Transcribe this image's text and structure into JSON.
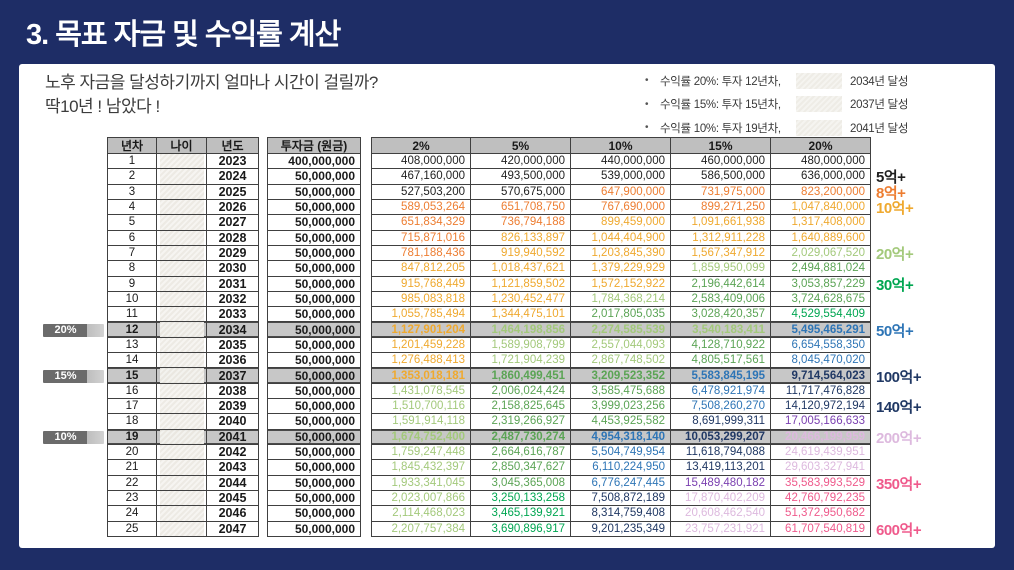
{
  "title": "3. 목표 자금 및 수익률 계산",
  "subtitle_line1": "노후 자금을 달성하기까지 얼마나 시간이 걸릴까?",
  "subtitle_line2": "딱10년 ! 남았다 !",
  "bullet_char": "•",
  "bullets": [
    {
      "prefix": "수익률 20%: 투자 12년차,",
      "suffix": "2034년 달성"
    },
    {
      "prefix": "수익률 15%: 투자 15년차,",
      "suffix": "2037년 달성"
    },
    {
      "prefix": "수익률 10%: 투자 19년차,",
      "suffix": "2041년 달성"
    }
  ],
  "palette": {
    "k": "#1F1F1F",
    "o": "#ED7D31",
    "g": "#EFA92F",
    "lg": "#A3C97B",
    "gr": "#5BA455",
    "em": "#00A651",
    "bl": "#2E75B6",
    "nv": "#203864",
    "pu": "#7A3FB0",
    "lv": "#DDB9DE",
    "pk": "#EF5A8C"
  },
  "table": {
    "headers": {
      "n": "년차",
      "age": "나이",
      "year": "년도",
      "principal": "투자금 (원금)",
      "rates": [
        "2%",
        "5%",
        "10%",
        "15%",
        "20%"
      ]
    },
    "rows": [
      {
        "n": "1",
        "year": "2023",
        "principal": "400,000,000",
        "v": [
          "408,000,000",
          "420,000,000",
          "440,000,000",
          "460,000,000",
          "480,000,000"
        ],
        "c": [
          "k",
          "k",
          "k",
          "k",
          "k"
        ]
      },
      {
        "n": "2",
        "year": "2024",
        "principal": "50,000,000",
        "v": [
          "467,160,000",
          "493,500,000",
          "539,000,000",
          "586,500,000",
          "636,000,000"
        ],
        "c": [
          "k",
          "k",
          "k",
          "k",
          "k"
        ],
        "label": "5억+",
        "lc": "k"
      },
      {
        "n": "3",
        "year": "2025",
        "principal": "50,000,000",
        "v": [
          "527,503,200",
          "570,675,000",
          "647,900,000",
          "731,975,000",
          "823,200,000"
        ],
        "c": [
          "k",
          "k",
          "o",
          "o",
          "o"
        ],
        "label": "8억+",
        "lc": "o"
      },
      {
        "n": "4",
        "year": "2026",
        "principal": "50,000,000",
        "v": [
          "589,053,264",
          "651,708,750",
          "767,690,000",
          "899,271,250",
          "1,047,840,000"
        ],
        "c": [
          "o",
          "o",
          "o",
          "o",
          "g"
        ],
        "label": "10억+",
        "lc": "g"
      },
      {
        "n": "5",
        "year": "2027",
        "principal": "50,000,000",
        "v": [
          "651,834,329",
          "736,794,188",
          "899,459,000",
          "1,091,661,938",
          "1,317,408,000"
        ],
        "c": [
          "o",
          "o",
          "g",
          "g",
          "g"
        ]
      },
      {
        "n": "6",
        "year": "2028",
        "principal": "50,000,000",
        "v": [
          "715,871,016",
          "826,133,897",
          "1,044,404,900",
          "1,312,911,228",
          "1,640,889,600"
        ],
        "c": [
          "o",
          "g",
          "g",
          "g",
          "g"
        ]
      },
      {
        "n": "7",
        "year": "2029",
        "principal": "50,000,000",
        "v": [
          "781,188,436",
          "919,940,592",
          "1,203,845,390",
          "1,567,347,912",
          "2,029,067,520"
        ],
        "c": [
          "o",
          "g",
          "g",
          "g",
          "lg"
        ],
        "label": "20억+",
        "lc": "lg"
      },
      {
        "n": "8",
        "year": "2030",
        "principal": "50,000,000",
        "v": [
          "847,812,205",
          "1,018,437,621",
          "1,379,229,929",
          "1,859,950,099",
          "2,494,881,024"
        ],
        "c": [
          "g",
          "g",
          "g",
          "lg",
          "gr"
        ]
      },
      {
        "n": "9",
        "year": "2031",
        "principal": "50,000,000",
        "v": [
          "915,768,449",
          "1,121,859,502",
          "1,572,152,922",
          "2,196,442,614",
          "3,053,857,229"
        ],
        "c": [
          "g",
          "g",
          "g",
          "gr",
          "gr"
        ],
        "label": "30억+",
        "lc": "em"
      },
      {
        "n": "10",
        "year": "2032",
        "principal": "50,000,000",
        "v": [
          "985,083,818",
          "1,230,452,477",
          "1,784,368,214",
          "2,583,409,006",
          "3,724,628,675"
        ],
        "c": [
          "g",
          "g",
          "lg",
          "gr",
          "gr"
        ]
      },
      {
        "n": "11",
        "year": "2033",
        "principal": "50,000,000",
        "v": [
          "1,055,785,494",
          "1,344,475,101",
          "2,017,805,035",
          "3,028,420,357",
          "4,529,554,409"
        ],
        "c": [
          "g",
          "g",
          "gr",
          "gr",
          "em"
        ]
      },
      {
        "n": "12",
        "year": "2034",
        "principal": "50,000,000",
        "v": [
          "1,127,901,204",
          "1,464,198,856",
          "2,274,585,539",
          "3,540,183,411",
          "5,495,465,291"
        ],
        "c": [
          "g",
          "lg",
          "lg",
          "lg",
          "bl"
        ],
        "label": "50억+",
        "lc": "bl",
        "hl": true,
        "badge": "20%"
      },
      {
        "n": "13",
        "year": "2035",
        "principal": "50,000,000",
        "v": [
          "1,201,459,228",
          "1,589,908,799",
          "2,557,044,093",
          "4,128,710,922",
          "6,654,558,350"
        ],
        "c": [
          "g",
          "lg",
          "lg",
          "gr",
          "bl"
        ]
      },
      {
        "n": "14",
        "year": "2036",
        "principal": "50,000,000",
        "v": [
          "1,276,488,413",
          "1,721,904,239",
          "2,867,748,502",
          "4,805,517,561",
          "8,045,470,020"
        ],
        "c": [
          "g",
          "lg",
          "lg",
          "gr",
          "bl"
        ]
      },
      {
        "n": "15",
        "year": "2037",
        "principal": "50,000,000",
        "v": [
          "1,353,018,181",
          "1,860,499,451",
          "3,209,523,352",
          "5,583,845,195",
          "9,714,564,023"
        ],
        "c": [
          "g",
          "gr",
          "gr",
          "bl",
          "nv"
        ],
        "label": "100억+",
        "lc": "nv",
        "hl": true,
        "badge": "15%"
      },
      {
        "n": "16",
        "year": "2038",
        "principal": "50,000,000",
        "v": [
          "1,431,078,545",
          "2,006,024,424",
          "3,585,475,688",
          "6,478,921,974",
          "11,717,476,828"
        ],
        "c": [
          "lg",
          "gr",
          "gr",
          "bl",
          "nv"
        ]
      },
      {
        "n": "17",
        "year": "2039",
        "principal": "50,000,000",
        "v": [
          "1,510,700,116",
          "2,158,825,645",
          "3,999,023,256",
          "7,508,260,270",
          "14,120,972,194"
        ],
        "c": [
          "lg",
          "gr",
          "gr",
          "bl",
          "nv"
        ],
        "label": "140억+",
        "lc": "nv"
      },
      {
        "n": "18",
        "year": "2040",
        "principal": "50,000,000",
        "v": [
          "1,591,914,118",
          "2,319,266,927",
          "4,453,925,582",
          "8,691,999,311",
          "17,005,166,633"
        ],
        "c": [
          "lg",
          "gr",
          "gr",
          "nv",
          "pu"
        ]
      },
      {
        "n": "19",
        "year": "2041",
        "principal": "50,000,000",
        "v": [
          "1,674,752,400",
          "2,487,730,274",
          "4,954,318,140",
          "10,053,299,207",
          "20,466,199,959"
        ],
        "c": [
          "lg",
          "gr",
          "bl",
          "nv",
          "lv"
        ],
        "label": "200억+",
        "lc": "lv",
        "hl": true,
        "badge": "10%"
      },
      {
        "n": "20",
        "year": "2042",
        "principal": "50,000,000",
        "v": [
          "1,759,247,448",
          "2,664,616,787",
          "5,504,749,954",
          "11,618,794,088",
          "24,619,439,951"
        ],
        "c": [
          "lg",
          "gr",
          "bl",
          "nv",
          "lv"
        ]
      },
      {
        "n": "21",
        "year": "2043",
        "principal": "50,000,000",
        "v": [
          "1,845,432,397",
          "2,850,347,627",
          "6,110,224,950",
          "13,419,113,201",
          "29,603,327,941"
        ],
        "c": [
          "lg",
          "gr",
          "bl",
          "nv",
          "lv"
        ]
      },
      {
        "n": "22",
        "year": "2044",
        "principal": "50,000,000",
        "v": [
          "1,933,341,045",
          "3,045,365,008",
          "6,776,247,445",
          "15,489,480,182",
          "35,583,993,529"
        ],
        "c": [
          "lg",
          "gr",
          "bl",
          "pu",
          "pk"
        ],
        "label": "350억+",
        "lc": "pk"
      },
      {
        "n": "23",
        "year": "2045",
        "principal": "50,000,000",
        "v": [
          "2,023,007,866",
          "3,250,133,258",
          "7,508,872,189",
          "17,870,402,209",
          "42,760,792,235"
        ],
        "c": [
          "lg",
          "em",
          "nv",
          "lv",
          "pk"
        ]
      },
      {
        "n": "24",
        "year": "2046",
        "principal": "50,000,000",
        "v": [
          "2,114,468,023",
          "3,465,139,921",
          "8,314,759,408",
          "20,608,462,540",
          "51,372,950,682"
        ],
        "c": [
          "lg",
          "em",
          "nv",
          "lv",
          "pk"
        ]
      },
      {
        "n": "25",
        "year": "2047",
        "principal": "50,000,000",
        "v": [
          "2,207,757,384",
          "3,690,896,917",
          "9,201,235,349",
          "23,757,231,921",
          "61,707,540,819"
        ],
        "c": [
          "lg",
          "em",
          "nv",
          "lv",
          "pk"
        ],
        "label": "600억+",
        "lc": "pk"
      }
    ]
  }
}
